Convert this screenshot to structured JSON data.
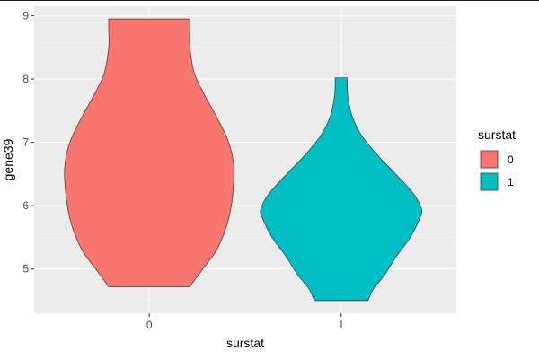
{
  "chart_data": {
    "type": "violin",
    "xlabel": "surstat",
    "ylabel": "gene39",
    "categories": [
      "0",
      "1"
    ],
    "ylim": [
      4.3,
      9.15
    ],
    "y_ticks": [
      5,
      6,
      7,
      8,
      9
    ],
    "grid": true,
    "legend": {
      "title": "surstat",
      "position": "right",
      "entries": [
        {
          "label": "0",
          "color": "#F8766D"
        },
        {
          "label": "1",
          "color": "#00BFC4"
        }
      ]
    },
    "series": [
      {
        "category": "0",
        "color": "#F8766D",
        "min": 4.72,
        "max": 8.95,
        "profile": [
          [
            4.72,
            0.47
          ],
          [
            5.0,
            0.62
          ],
          [
            5.3,
            0.78
          ],
          [
            5.7,
            0.9
          ],
          [
            6.1,
            0.96
          ],
          [
            6.6,
            0.98
          ],
          [
            7.0,
            0.92
          ],
          [
            7.4,
            0.78
          ],
          [
            7.8,
            0.62
          ],
          [
            8.1,
            0.52
          ],
          [
            8.5,
            0.47
          ],
          [
            8.8,
            0.47
          ],
          [
            8.95,
            0.47
          ]
        ]
      },
      {
        "category": "1",
        "color": "#00BFC4",
        "min": 4.5,
        "max": 8.02,
        "profile": [
          [
            4.5,
            0.31
          ],
          [
            4.7,
            0.38
          ],
          [
            4.9,
            0.5
          ],
          [
            5.2,
            0.64
          ],
          [
            5.5,
            0.8
          ],
          [
            5.8,
            0.91
          ],
          [
            5.95,
            0.93
          ],
          [
            6.2,
            0.83
          ],
          [
            6.5,
            0.63
          ],
          [
            6.8,
            0.42
          ],
          [
            7.1,
            0.24
          ],
          [
            7.4,
            0.13
          ],
          [
            7.7,
            0.08
          ],
          [
            7.9,
            0.07
          ],
          [
            8.02,
            0.07
          ]
        ]
      }
    ]
  }
}
